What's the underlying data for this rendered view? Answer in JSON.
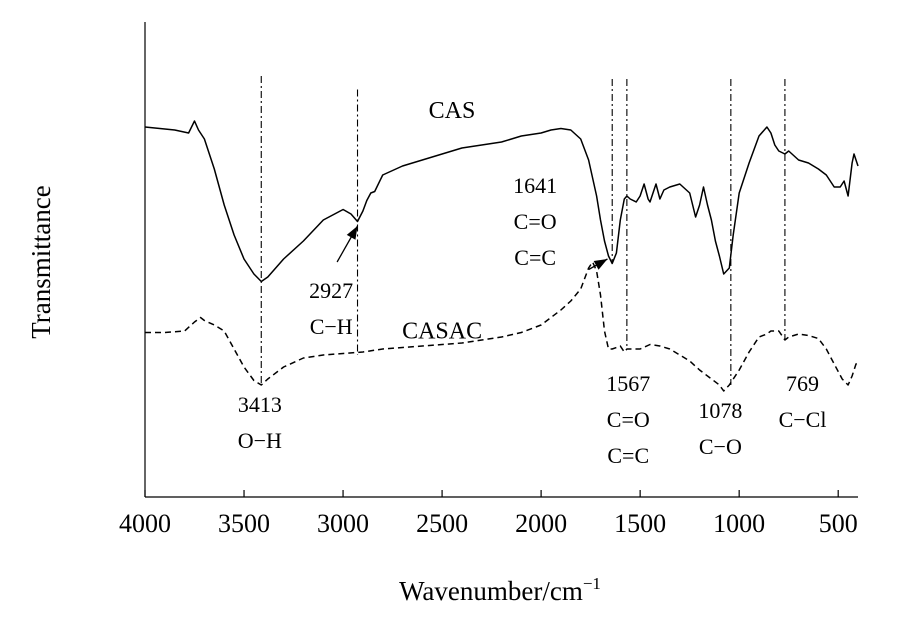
{
  "chart_data": {
    "type": "line",
    "title": "",
    "xlabel": "Wavenumber/cm",
    "xlabel_superscript": "−1",
    "ylabel": "Transmittance",
    "xlim": [
      4000,
      400
    ],
    "x_reversed": true,
    "ylim": [
      0,
      1
    ],
    "grid": false,
    "y_ticks_shown": false,
    "x_ticks": [
      4000,
      3500,
      3000,
      2500,
      2000,
      1500,
      1000,
      500
    ],
    "x_tick_labels": [
      "4000",
      "3500",
      "3000",
      "2500",
      "2000",
      "1500",
      "1000",
      "500"
    ],
    "series": [
      {
        "name": "CAS",
        "style": "solid",
        "x": [
          4000,
          3850,
          3780,
          3750,
          3730,
          3700,
          3650,
          3600,
          3550,
          3500,
          3450,
          3413,
          3380,
          3300,
          3200,
          3100,
          3000,
          2960,
          2927,
          2900,
          2880,
          2860,
          2840,
          2800,
          2700,
          2600,
          2500,
          2400,
          2300,
          2200,
          2100,
          2000,
          1950,
          1900,
          1850,
          1800,
          1760,
          1720,
          1700,
          1680,
          1660,
          1641,
          1620,
          1600,
          1580,
          1567,
          1550,
          1520,
          1500,
          1480,
          1460,
          1450,
          1420,
          1400,
          1380,
          1350,
          1300,
          1250,
          1220,
          1200,
          1180,
          1160,
          1140,
          1120,
          1100,
          1078,
          1050,
          1030,
          1000,
          950,
          900,
          860,
          840,
          820,
          800,
          769,
          750,
          700,
          650,
          600,
          560,
          520,
          490,
          470,
          450,
          430,
          420,
          400
        ],
        "y": [
          0.86,
          0.85,
          0.84,
          0.88,
          0.85,
          0.82,
          0.72,
          0.6,
          0.5,
          0.42,
          0.37,
          0.345,
          0.36,
          0.42,
          0.48,
          0.55,
          0.585,
          0.57,
          0.545,
          0.58,
          0.615,
          0.64,
          0.645,
          0.7,
          0.73,
          0.75,
          0.77,
          0.79,
          0.8,
          0.81,
          0.83,
          0.84,
          0.85,
          0.855,
          0.85,
          0.82,
          0.75,
          0.63,
          0.55,
          0.48,
          0.43,
          0.405,
          0.44,
          0.55,
          0.62,
          0.63,
          0.62,
          0.61,
          0.63,
          0.67,
          0.62,
          0.61,
          0.67,
          0.62,
          0.65,
          0.66,
          0.67,
          0.64,
          0.56,
          0.6,
          0.66,
          0.6,
          0.55,
          0.48,
          0.43,
          0.37,
          0.39,
          0.5,
          0.64,
          0.74,
          0.83,
          0.86,
          0.84,
          0.8,
          0.78,
          0.77,
          0.78,
          0.75,
          0.74,
          0.72,
          0.7,
          0.66,
          0.66,
          0.68,
          0.63,
          0.74,
          0.77,
          0.73
        ]
      },
      {
        "name": "CASAC",
        "style": "dashed",
        "x": [
          4000,
          3900,
          3800,
          3750,
          3720,
          3700,
          3650,
          3600,
          3550,
          3500,
          3450,
          3413,
          3380,
          3300,
          3200,
          3100,
          3000,
          2900,
          2800,
          2700,
          2600,
          2500,
          2400,
          2300,
          2200,
          2100,
          2000,
          1900,
          1850,
          1800,
          1760,
          1740,
          1720,
          1700,
          1680,
          1660,
          1641,
          1620,
          1600,
          1580,
          1567,
          1550,
          1500,
          1450,
          1400,
          1350,
          1300,
          1250,
          1200,
          1150,
          1100,
          1078,
          1050,
          1000,
          950,
          900,
          860,
          840,
          800,
          769,
          750,
          700,
          650,
          600,
          560,
          520,
          480,
          450,
          430,
          410,
          400
        ],
        "y": [
          0.175,
          0.175,
          0.18,
          0.21,
          0.225,
          0.215,
          0.2,
          0.18,
          0.12,
          0.06,
          0.015,
          0.0,
          0.02,
          0.06,
          0.09,
          0.1,
          0.105,
          0.11,
          0.12,
          0.125,
          0.13,
          0.135,
          0.14,
          0.15,
          0.16,
          0.175,
          0.2,
          0.25,
          0.28,
          0.32,
          0.39,
          0.41,
          0.38,
          0.3,
          0.18,
          0.12,
          0.12,
          0.125,
          0.13,
          0.11,
          0.12,
          0.12,
          0.12,
          0.135,
          0.13,
          0.12,
          0.1,
          0.08,
          0.05,
          0.025,
          0.0,
          -0.02,
          0.0,
          0.05,
          0.11,
          0.16,
          0.17,
          0.18,
          0.18,
          0.15,
          0.16,
          0.17,
          0.165,
          0.155,
          0.12,
          0.07,
          0.02,
          0.0,
          0.03,
          0.07,
          0.075
        ]
      }
    ],
    "series_labels": [
      {
        "text": "CAS",
        "x": 2450,
        "y": 0.89
      },
      {
        "text": "CASAC",
        "x": 2500,
        "y": 0.155
      }
    ],
    "reference_lines": [
      {
        "x": 3413,
        "y_top": 1.03,
        "y_bottom": 0.0
      },
      {
        "x": 2927,
        "y_top": 0.985,
        "y_bottom": 0.1
      },
      {
        "x": 1641,
        "y_top": 1.02,
        "y_bottom": 0.405
      },
      {
        "x": 1567,
        "y_top": 1.02,
        "y_bottom": 0.12
      },
      {
        "x": 1042,
        "y_top": 1.02,
        "y_bottom": 0.0
      },
      {
        "x": 769,
        "y_top": 1.02,
        "y_bottom": 0.15
      }
    ],
    "annotations": [
      {
        "lines": [
          "2927",
          "C−H"
        ],
        "x": 3060,
        "y": 0.29,
        "arrow_to": [
          2927,
          0.53
        ],
        "arrow_from": [
          3030,
          0.41
        ]
      },
      {
        "lines": [
          "1641",
          "C=O",
          "C=C"
        ],
        "x": 2030,
        "y": 0.64,
        "arrow_to": [
          1665,
          0.42
        ],
        "arrow_from": [
          1760,
          0.385
        ]
      },
      {
        "lines": [
          "3413",
          "O−H"
        ],
        "x": 3420,
        "y": -0.09
      },
      {
        "lines": [
          "1567",
          "C=O",
          "C=C"
        ],
        "x": 1560,
        "y": -0.02
      },
      {
        "lines": [
          "1078",
          "C−O"
        ],
        "x": 1095,
        "y": -0.11
      },
      {
        "lines": [
          "769",
          "C−Cl"
        ],
        "x": 680,
        "y": -0.02
      }
    ]
  },
  "colors": {
    "line": "#000000",
    "background": "#ffffff"
  }
}
